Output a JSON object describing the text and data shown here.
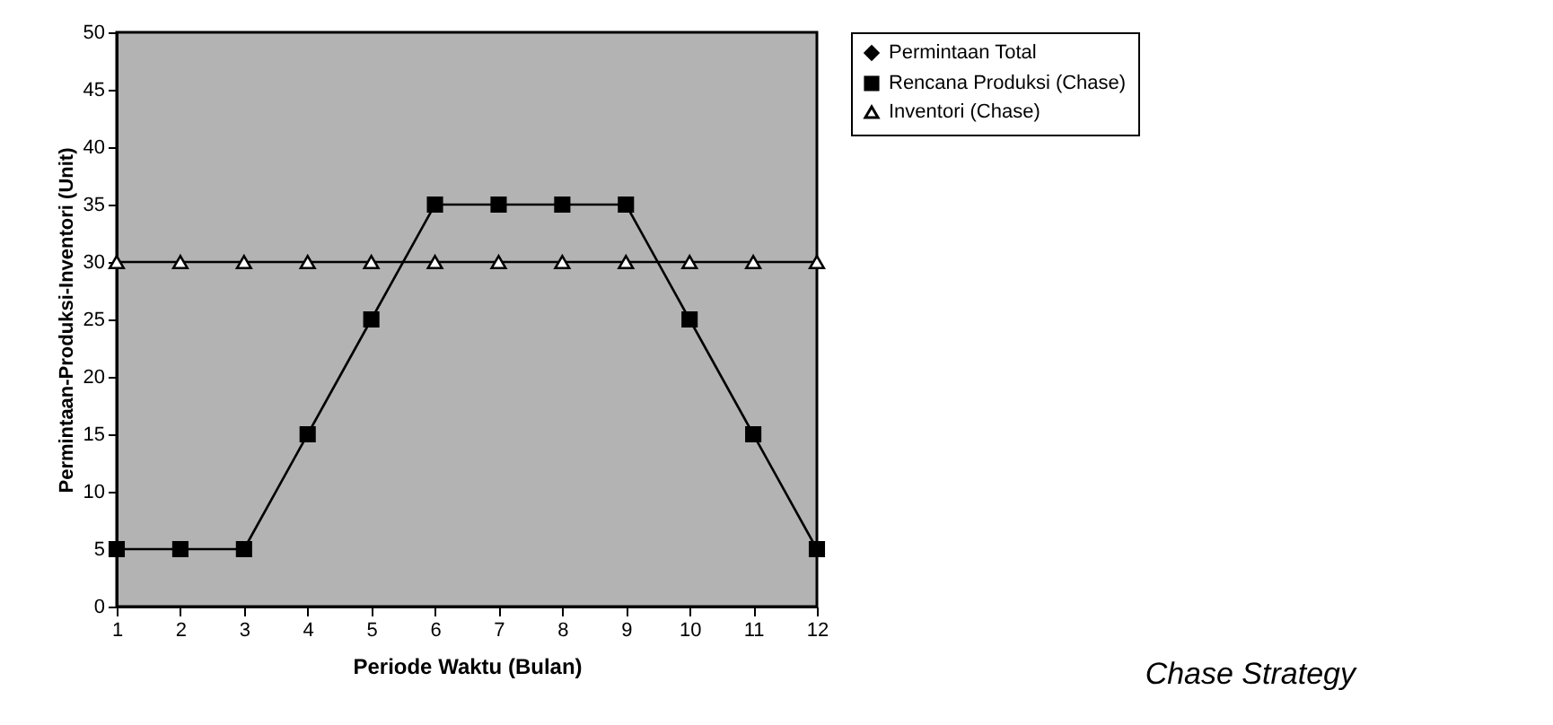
{
  "chart_data": {
    "type": "line",
    "xlabel": "Periode Waktu (Bulan)",
    "ylabel": "Permintaan-Produksi-Inventori (Unit)",
    "x": [
      1,
      2,
      3,
      4,
      5,
      6,
      7,
      8,
      9,
      10,
      11,
      12
    ],
    "xlim": [
      1,
      12
    ],
    "xticks": [
      1,
      2,
      3,
      4,
      5,
      6,
      7,
      8,
      9,
      10,
      11,
      12
    ],
    "ylim": [
      0,
      50
    ],
    "yticks": [
      0,
      5,
      10,
      15,
      20,
      25,
      30,
      35,
      40,
      45,
      50
    ],
    "series": [
      {
        "name": "Permintaan Total",
        "color": "#000000",
        "marker": "diamond",
        "values": [
          null,
          null,
          null,
          null,
          null,
          null,
          null,
          null,
          null,
          null,
          null,
          null
        ]
      },
      {
        "name": "Rencana Produksi (Chase)",
        "color": "#000000",
        "marker": "square",
        "values": [
          5,
          5,
          5,
          15,
          25,
          35,
          35,
          35,
          35,
          25,
          15,
          5
        ]
      },
      {
        "name": "Inventori (Chase)",
        "color": "#000000",
        "marker": "triangle",
        "values": [
          30,
          30,
          30,
          30,
          30,
          30,
          30,
          30,
          30,
          30,
          30,
          30
        ]
      }
    ],
    "legend": "right",
    "grid": false,
    "line_style": "solid",
    "annotations": [
      "Chase Strategy"
    ]
  }
}
